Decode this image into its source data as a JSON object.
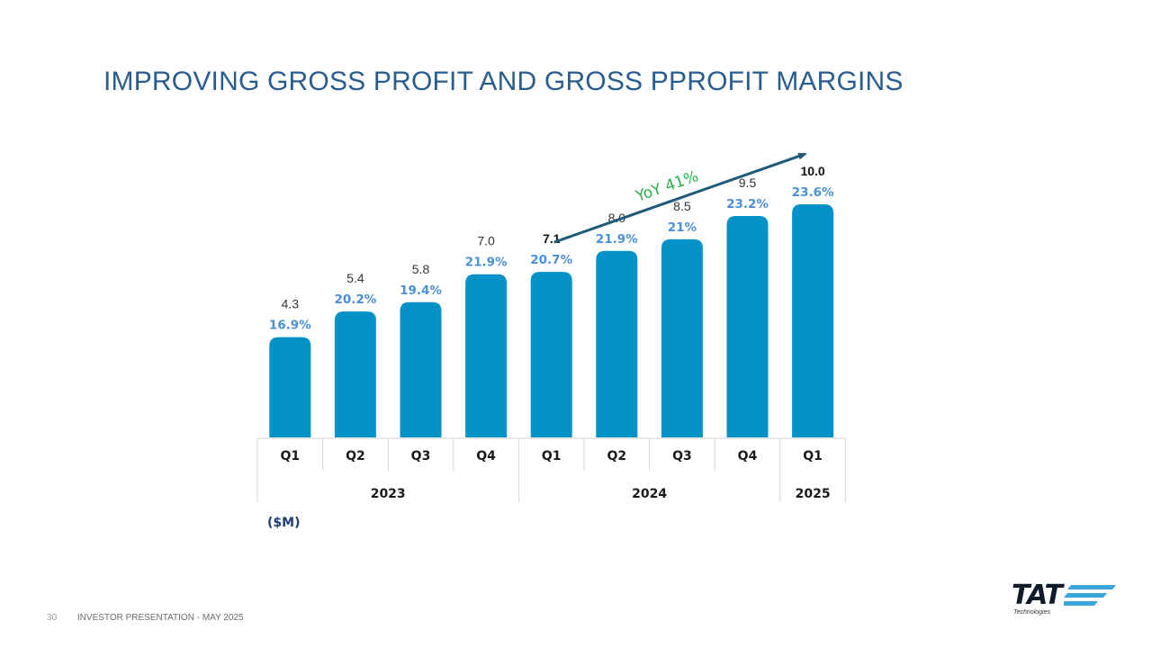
{
  "slide": {
    "title": "IMPROVING GROSS PROFIT AND GROSS PPROFIT MARGINS",
    "unit_label": "($M)",
    "footer": {
      "page_number": "30",
      "text": "INVESTOR PRESENTATION  -  MAY 2025"
    },
    "logo": {
      "name": "TAT",
      "subtitle": "Technologies"
    }
  },
  "chart_data": {
    "type": "bar",
    "title": "",
    "categories": [
      "Q1",
      "Q2",
      "Q3",
      "Q4",
      "Q1",
      "Q2",
      "Q3",
      "Q4",
      "Q1"
    ],
    "years": [
      {
        "label": "2023",
        "span": 4
      },
      {
        "label": "2024",
        "span": 4
      },
      {
        "label": "2025",
        "span": 1
      }
    ],
    "series": [
      {
        "values": [
          4.3,
          5.4,
          5.8,
          7.0,
          7.1,
          8.0,
          8.5,
          9.5,
          10.0
        ],
        "value_labels": [
          "4.3",
          "5.4",
          "5.8",
          "7.0",
          "7.1",
          "8.0",
          "8.5",
          "9.5",
          "10.0"
        ],
        "bold_labels": [
          false,
          false,
          false,
          false,
          true,
          false,
          false,
          false,
          true
        ],
        "margin_labels": [
          "16.9%",
          "20.2%",
          "19.4%",
          "21.9%",
          "20.7%",
          "21.9%",
          "21%",
          "23.2%",
          "23.6%"
        ]
      }
    ],
    "annotation": {
      "text": "YoY 41%",
      "color": "#2bb24c",
      "arrow_color": "#1e5a7c"
    },
    "colors": {
      "bar": "#0592c9",
      "value_label": "#333333",
      "margin_label": "#4a90d9",
      "axis_text": "#1a1a1a"
    },
    "ylim": [
      0,
      11
    ],
    "grid": false,
    "legend": "none"
  }
}
